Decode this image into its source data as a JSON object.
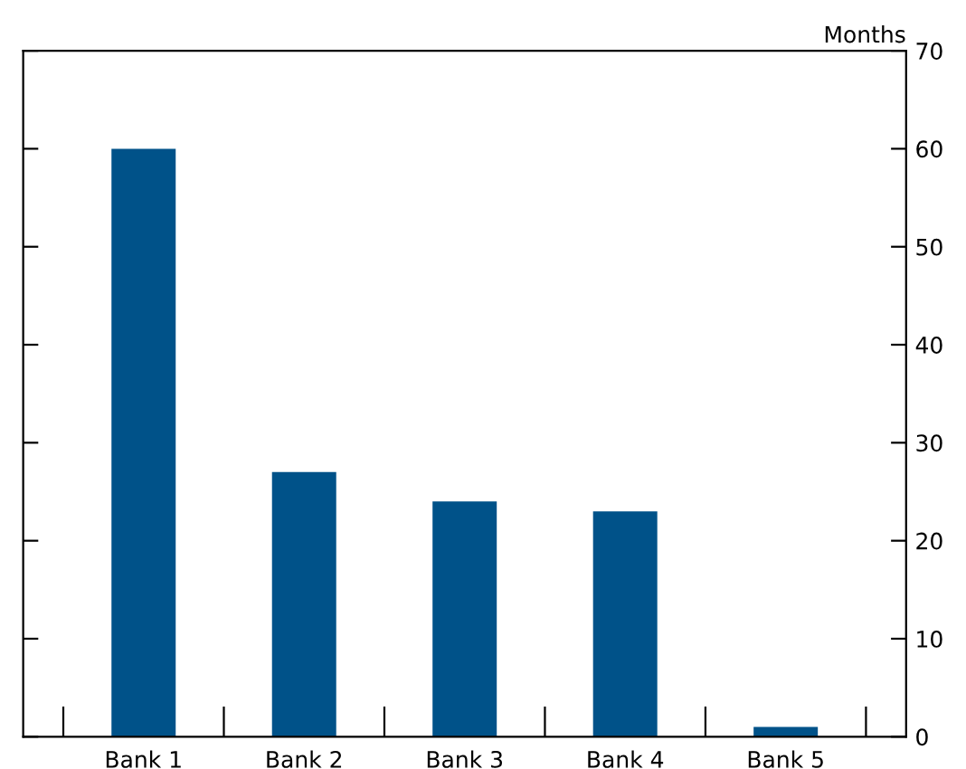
{
  "chart_data": {
    "type": "bar",
    "ylabel": "Months",
    "categories": [
      "Bank 1",
      "Bank 2",
      "Bank 3",
      "Bank 4",
      "Bank 5"
    ],
    "values": [
      60,
      27,
      24,
      23,
      1
    ],
    "color": "#005289",
    "ylim": [
      0,
      70
    ],
    "yticks": [
      0,
      10,
      20,
      30,
      40,
      50,
      60,
      70
    ],
    "grid": false,
    "legend": false
  }
}
